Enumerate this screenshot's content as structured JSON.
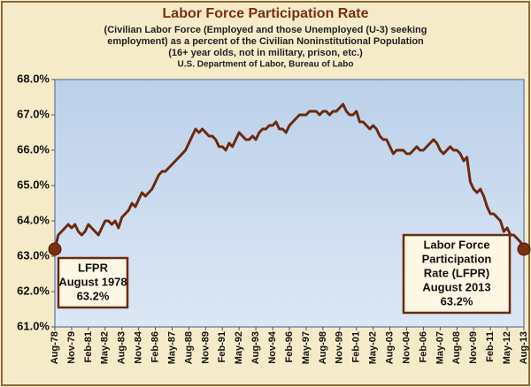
{
  "chart_data": {
    "type": "line",
    "title": "Labor Force Participation Rate",
    "subtitle": [
      "(Civilian Labor Force (Employed and those Unemployed (U-3) seeking",
      "employment) as a percent of the Civilian Noninstitutional Population",
      "(16+ year olds, not in military, prison, etc.)",
      "U.S. Department of Labor, Bureau of Labo"
    ],
    "categories": [
      "Aug-78",
      null,
      null,
      null,
      null,
      "Nov-79",
      null,
      null,
      null,
      null,
      "Feb-81",
      null,
      null,
      null,
      null,
      "May-82",
      null,
      null,
      null,
      null,
      "Aug-83",
      null,
      null,
      null,
      null,
      "Nov-84",
      null,
      null,
      null,
      null,
      "Feb-86",
      null,
      null,
      null,
      null,
      "May-87",
      null,
      null,
      null,
      null,
      "Aug-88",
      null,
      null,
      null,
      null,
      "Nov-89",
      null,
      null,
      null,
      null,
      "Feb-91",
      null,
      null,
      null,
      null,
      "May-92",
      null,
      null,
      null,
      null,
      "Aug-93",
      null,
      null,
      null,
      null,
      "Nov-94",
      null,
      null,
      null,
      null,
      "Feb-96",
      null,
      null,
      null,
      null,
      "May-97",
      null,
      null,
      null,
      null,
      "Aug-98",
      null,
      null,
      null,
      null,
      "Nov-99",
      null,
      null,
      null,
      null,
      "Feb-01",
      null,
      null,
      null,
      null,
      "May-02",
      null,
      null,
      null,
      null,
      "Aug-03",
      null,
      null,
      null,
      null,
      "Nov-04",
      null,
      null,
      null,
      null,
      "Feb-06",
      null,
      null,
      null,
      null,
      "May-07",
      null,
      null,
      null,
      null,
      "Aug-08",
      null,
      null,
      null,
      null,
      "Nov-09",
      null,
      null,
      null,
      null,
      "Feb-11",
      null,
      null,
      null,
      null,
      "May-12",
      null,
      null,
      null,
      null,
      "Aug-13"
    ],
    "values": [
      63.2,
      63.6,
      63.7,
      63.8,
      63.9,
      63.8,
      63.9,
      63.7,
      63.6,
      63.7,
      63.9,
      63.8,
      63.7,
      63.6,
      63.8,
      64.0,
      64.0,
      63.9,
      64.0,
      63.8,
      64.1,
      64.2,
      64.3,
      64.5,
      64.4,
      64.6,
      64.8,
      64.7,
      64.8,
      64.9,
      65.1,
      65.3,
      65.4,
      65.4,
      65.5,
      65.6,
      65.7,
      65.8,
      65.9,
      66.0,
      66.2,
      66.4,
      66.6,
      66.5,
      66.6,
      66.5,
      66.4,
      66.4,
      66.3,
      66.1,
      66.1,
      66.0,
      66.2,
      66.1,
      66.3,
      66.5,
      66.4,
      66.3,
      66.3,
      66.4,
      66.3,
      66.5,
      66.6,
      66.6,
      66.7,
      66.7,
      66.8,
      66.6,
      66.6,
      66.5,
      66.7,
      66.8,
      66.9,
      67.0,
      67.0,
      67.0,
      67.1,
      67.1,
      67.1,
      67.0,
      67.1,
      67.1,
      67.0,
      67.1,
      67.1,
      67.2,
      67.3,
      67.1,
      67.0,
      67.0,
      67.1,
      66.8,
      66.8,
      66.7,
      66.6,
      66.7,
      66.6,
      66.4,
      66.3,
      66.3,
      66.1,
      65.9,
      66.0,
      66.0,
      66.0,
      65.9,
      65.9,
      66.0,
      66.1,
      66.0,
      66.0,
      66.1,
      66.2,
      66.3,
      66.2,
      66.0,
      65.9,
      66.0,
      66.1,
      66.0,
      66.0,
      65.9,
      65.7,
      65.8,
      65.1,
      64.9,
      64.8,
      64.9,
      64.7,
      64.4,
      64.2,
      64.2,
      64.1,
      64.0,
      63.7,
      63.8,
      63.6,
      63.6,
      63.5,
      63.4,
      63.2
    ],
    "color": "#6b2a10",
    "ylim": [
      61,
      68
    ],
    "yticks": [
      {
        "value": 61,
        "label": "61.0%"
      },
      {
        "value": 62,
        "label": "62.0%"
      },
      {
        "value": 63,
        "label": "63.0%"
      },
      {
        "value": 64,
        "label": "64.0%"
      },
      {
        "value": 65,
        "label": "65.0%"
      },
      {
        "value": 66,
        "label": "66.0%"
      },
      {
        "value": 67,
        "label": "67.0%"
      },
      {
        "value": 68,
        "label": "68.0%"
      }
    ],
    "grid": false,
    "annotations": [
      [
        "LFPR",
        "August 1978",
        "63.2%"
      ],
      [
        "Labor Force",
        "Participation",
        "Rate (LFPR)",
        "August 2013",
        "63.2%"
      ]
    ]
  }
}
